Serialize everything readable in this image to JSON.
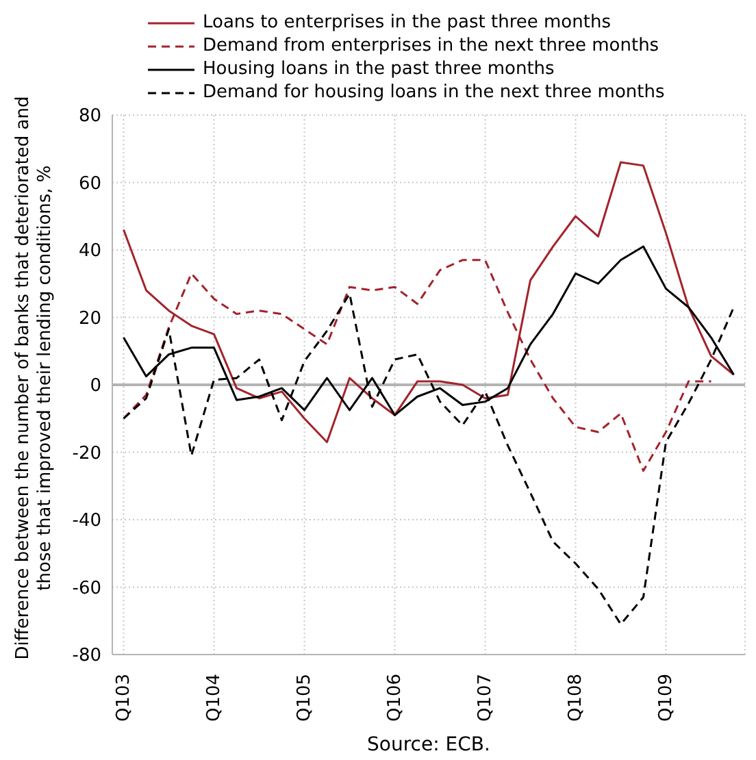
{
  "chart_data": {
    "type": "line",
    "ylabel": "Difference between the number of banks that deteriorated and those that improved their lending conditions, %",
    "annotations": [
      "Source: ECB."
    ],
    "categories": [
      "Q103",
      null,
      null,
      null,
      "Q104",
      null,
      null,
      null,
      "Q105",
      null,
      null,
      null,
      "Q106",
      null,
      null,
      null,
      "Q107",
      null,
      null,
      null,
      "Q108",
      null,
      null,
      null,
      "Q109",
      null,
      null,
      null
    ],
    "series": [
      {
        "name": "Loans to enterprises in the past three months",
        "color": "#a3232b",
        "line_style": "solid",
        "values": [
          46,
          28,
          22,
          17.5,
          15,
          -1,
          -4,
          -2,
          -10,
          -17,
          2,
          -4,
          -9,
          1,
          1,
          0,
          -4,
          -3,
          31,
          41,
          50,
          44,
          66,
          65,
          45,
          23,
          8.5,
          3
        ]
      },
      {
        "name": "Demand from enterprises in the next three months",
        "color": "#a3232b",
        "line_style": "dashed",
        "values": [
          -10,
          -3,
          17,
          33,
          25.5,
          21,
          22,
          21,
          16.5,
          12,
          29,
          28,
          29,
          24,
          34,
          37,
          37,
          21.5,
          7.5,
          -4,
          -12.5,
          -14,
          -8.5,
          -25.5,
          -14,
          1,
          1,
          null
        ]
      },
      {
        "name": "Housing loans in the past three months",
        "color": "#000000",
        "line_style": "solid",
        "values": [
          14,
          2.5,
          9,
          11,
          11,
          -4.5,
          -3.5,
          -1,
          -7.5,
          2,
          -7.5,
          2,
          -9,
          -3.5,
          -1,
          -6,
          -5,
          -1,
          12,
          21,
          33,
          30,
          37,
          41,
          28.5,
          23,
          14,
          3
        ]
      },
      {
        "name": "Demand for housing loans in the next three months",
        "color": "#000000",
        "line_style": "dashed",
        "values": [
          -10,
          -4,
          16.5,
          -21,
          1.5,
          2,
          7.5,
          -10.5,
          7,
          16,
          27,
          -6.5,
          7.5,
          9,
          -5,
          -12,
          -2,
          -18,
          -32,
          -46.5,
          -53,
          -60.5,
          -71,
          -63,
          -17,
          -5.5,
          7.5,
          23
        ]
      }
    ],
    "ylim": [
      -80,
      80
    ],
    "yticks": [
      -80,
      -60,
      -40,
      -20,
      0,
      20,
      40,
      60,
      80
    ],
    "ref_lines": [
      {
        "axis": "y",
        "value": 0,
        "color": "#b4b4b4"
      }
    ],
    "grid": true,
    "legend": "top",
    "marker": "none"
  }
}
